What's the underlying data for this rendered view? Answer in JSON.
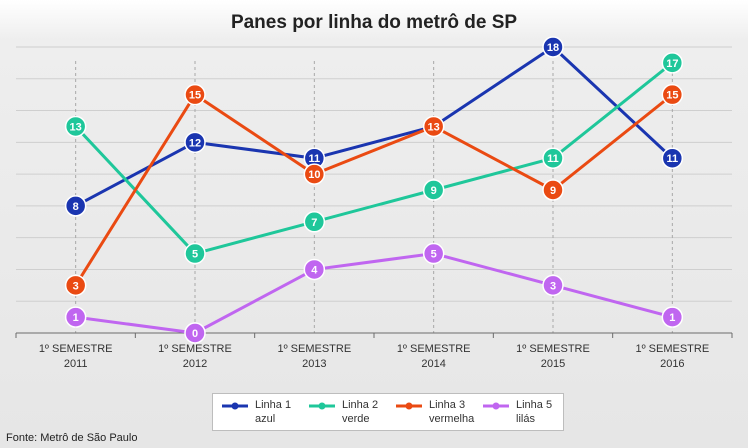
{
  "chart_data": {
    "type": "line",
    "title": "Panes por linha do metrô de SP",
    "categories": [
      [
        "1º SEMESTRE",
        "2011"
      ],
      [
        "1º SEMESTRE",
        "2012"
      ],
      [
        "1º SEMESTRE",
        "2013"
      ],
      [
        "1º SEMESTRE",
        "2014"
      ],
      [
        "1º SEMESTRE",
        "2015"
      ],
      [
        "1º SEMESTRE",
        "2016"
      ]
    ],
    "ylim": [
      0,
      18
    ],
    "grid": true,
    "legend_position": "bottom",
    "series": [
      {
        "name": [
          "Linha 1",
          "azul"
        ],
        "color": "#1a35b0",
        "values": [
          8,
          12,
          11,
          null,
          18,
          11
        ],
        "extra_point": {
          "after_index": 3,
          "value": 13,
          "label": false
        }
      },
      {
        "name": [
          "Linha 2",
          "verde"
        ],
        "color": "#1fc79a",
        "values": [
          13,
          5,
          7,
          9,
          11,
          17
        ]
      },
      {
        "name": [
          "Linha 3",
          "vermelha"
        ],
        "color": "#ea4a12",
        "values": [
          3,
          15,
          10,
          13,
          9,
          15
        ]
      },
      {
        "name": [
          "Linha 5",
          "lilás"
        ],
        "color": "#c066f0",
        "values": [
          1,
          0,
          4,
          5,
          3,
          1
        ]
      }
    ]
  },
  "source": "Fonte: Metrô de São Paulo"
}
